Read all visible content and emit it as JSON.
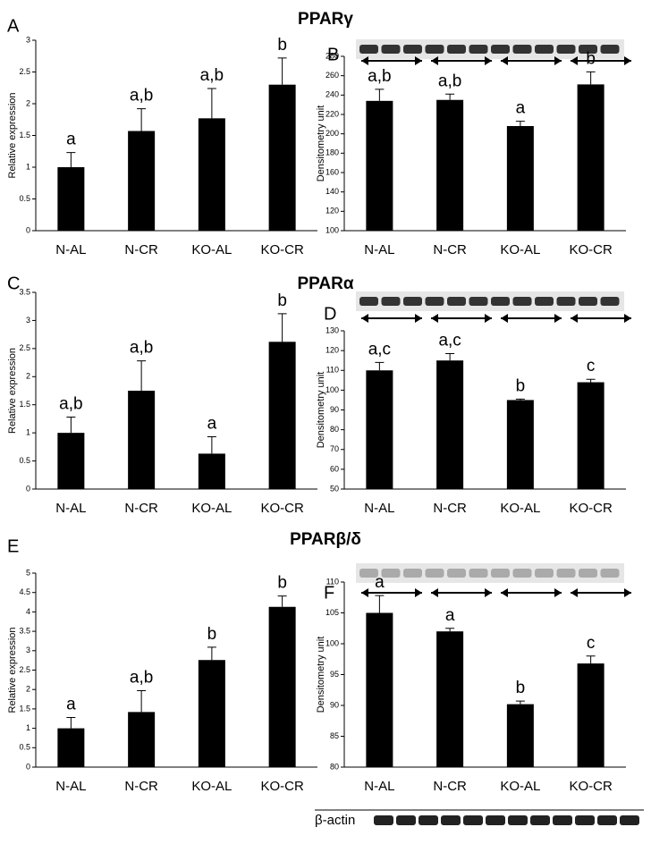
{
  "headings": [
    "PPARγ",
    "PPARα",
    "PPARβ/δ"
  ],
  "loading_control": "β-actin",
  "chart_data": [
    {
      "type": "bar",
      "panel": "A",
      "ylabel": "Relative expression",
      "categories": [
        "N-AL",
        "N-CR",
        "KO-AL",
        "KO-CR"
      ],
      "values": [
        1.0,
        1.57,
        1.77,
        2.3
      ],
      "errors": [
        0.23,
        0.35,
        0.47,
        0.42
      ],
      "annotations": [
        "a",
        "a,b",
        "a,b",
        "b"
      ],
      "color": "#000000",
      "ylim": [
        0,
        3
      ],
      "yticks": [
        0,
        0.5,
        1,
        1.5,
        2,
        2.5,
        3
      ]
    },
    {
      "type": "bar",
      "panel": "B",
      "ylabel": "Densitometry unit",
      "categories": [
        "N-AL",
        "N-CR",
        "KO-AL",
        "KO-CR"
      ],
      "values": [
        234,
        235,
        208,
        251
      ],
      "errors": [
        12,
        6,
        5,
        13
      ],
      "annotations": [
        "a,b",
        "a,b",
        "a",
        "b"
      ],
      "color": "#000000",
      "ylim": [
        100,
        280
      ],
      "yticks": [
        100,
        120,
        140,
        160,
        180,
        200,
        220,
        240,
        260,
        280
      ]
    },
    {
      "type": "bar",
      "panel": "C",
      "ylabel": "Relative expression",
      "categories": [
        "N-AL",
        "N-CR",
        "KO-AL",
        "KO-CR"
      ],
      "values": [
        1.0,
        1.75,
        0.63,
        2.62
      ],
      "errors": [
        0.28,
        0.53,
        0.3,
        0.5
      ],
      "annotations": [
        "a,b",
        "a,b",
        "a",
        "b"
      ],
      "color": "#000000",
      "ylim": [
        0,
        3.5
      ],
      "yticks": [
        0,
        0.5,
        1,
        1.5,
        2,
        2.5,
        3,
        3.5
      ]
    },
    {
      "type": "bar",
      "panel": "D",
      "ylabel": "Densitometry unit",
      "categories": [
        "N-AL",
        "N-CR",
        "KO-AL",
        "KO-CR"
      ],
      "values": [
        110,
        115,
        95,
        104
      ],
      "errors": [
        4,
        3.5,
        0.5,
        1.5
      ],
      "annotations": [
        "a,c",
        "a,c",
        "b",
        "c"
      ],
      "color": "#000000",
      "ylim": [
        50,
        130
      ],
      "yticks": [
        50,
        60,
        70,
        80,
        90,
        100,
        110,
        120,
        130
      ]
    },
    {
      "type": "bar",
      "panel": "E",
      "ylabel": "Relative expression",
      "categories": [
        "N-AL",
        "N-CR",
        "KO-AL",
        "KO-CR"
      ],
      "values": [
        1.0,
        1.42,
        2.76,
        4.13
      ],
      "errors": [
        0.28,
        0.55,
        0.33,
        0.28
      ],
      "annotations": [
        "a",
        "a,b",
        "b",
        "b"
      ],
      "color": "#000000",
      "ylim": [
        0,
        5
      ],
      "yticks": [
        0,
        0.5,
        1,
        1.5,
        2,
        2.5,
        3,
        3.5,
        4,
        4.5,
        5
      ]
    },
    {
      "type": "bar",
      "panel": "F",
      "ylabel": "Densitometry unit",
      "categories": [
        "N-AL",
        "N-CR",
        "KO-AL",
        "KO-CR"
      ],
      "values": [
        105,
        102,
        90.2,
        96.8
      ],
      "errors": [
        2.8,
        0.5,
        0.5,
        1.2
      ],
      "annotations": [
        "a",
        "a",
        "b",
        "c"
      ],
      "color": "#000000",
      "ylim": [
        80,
        110
      ],
      "yticks": [
        80,
        85,
        90,
        95,
        100,
        105,
        110
      ]
    }
  ]
}
